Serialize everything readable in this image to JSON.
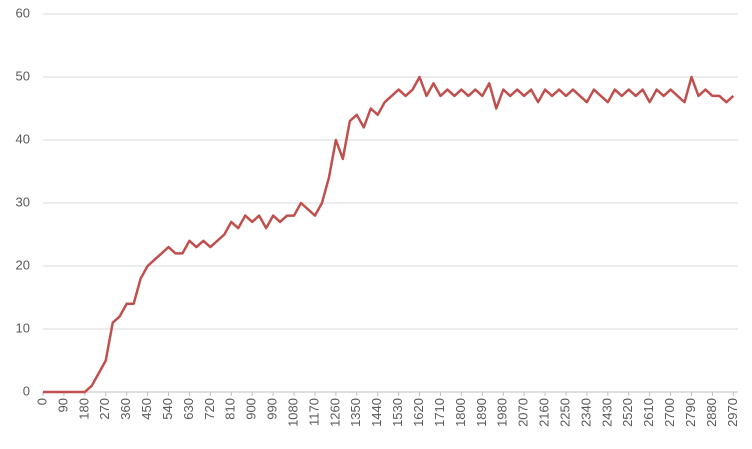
{
  "chart_data": {
    "type": "line",
    "x": [
      0,
      30,
      60,
      90,
      120,
      150,
      180,
      210,
      240,
      270,
      300,
      330,
      360,
      390,
      420,
      450,
      480,
      510,
      540,
      570,
      600,
      630,
      660,
      690,
      720,
      750,
      780,
      810,
      840,
      870,
      900,
      930,
      960,
      990,
      1020,
      1050,
      1080,
      1110,
      1140,
      1170,
      1200,
      1230,
      1260,
      1290,
      1320,
      1350,
      1380,
      1410,
      1440,
      1470,
      1500,
      1530,
      1560,
      1590,
      1620,
      1650,
      1680,
      1710,
      1740,
      1770,
      1800,
      1830,
      1860,
      1890,
      1920,
      1950,
      1980,
      2010,
      2040,
      2070,
      2100,
      2130,
      2160,
      2190,
      2220,
      2250,
      2280,
      2310,
      2340,
      2370,
      2400,
      2430,
      2460,
      2490,
      2520,
      2550,
      2580,
      2610,
      2640,
      2670,
      2700,
      2730,
      2760,
      2790,
      2820,
      2850,
      2880,
      2910,
      2940,
      2970
    ],
    "series": [
      {
        "color": "#c0504d",
        "values": [
          0,
          0,
          0,
          0,
          0,
          0,
          0,
          1,
          3,
          5,
          11,
          12,
          14,
          14,
          18,
          20,
          21,
          22,
          23,
          22,
          22,
          24,
          23,
          24,
          23,
          24,
          25,
          27,
          26,
          28,
          27,
          28,
          26,
          28,
          27,
          28,
          28,
          30,
          29,
          28,
          30,
          34,
          40,
          37,
          43,
          44,
          42,
          45,
          44,
          46,
          47,
          48,
          47,
          48,
          50,
          47,
          49,
          47,
          48,
          47,
          48,
          47,
          48,
          47,
          49,
          45,
          48,
          47,
          48,
          47,
          48,
          46,
          48,
          47,
          48,
          47,
          48,
          47,
          46,
          48,
          47,
          46,
          48,
          47,
          48,
          47,
          48,
          46,
          48,
          47,
          48,
          47,
          46,
          50,
          47,
          48,
          47,
          47,
          46,
          47
        ]
      }
    ],
    "xlim": [
      0,
      2990
    ],
    "xticks": [
      0,
      90,
      180,
      270,
      360,
      450,
      540,
      630,
      720,
      810,
      900,
      990,
      1080,
      1170,
      1260,
      1350,
      1440,
      1530,
      1620,
      1710,
      1800,
      1890,
      1980,
      2070,
      2160,
      2250,
      2340,
      2430,
      2520,
      2610,
      2700,
      2790,
      2880,
      2970
    ],
    "ylim": [
      0,
      60
    ],
    "yticks": [
      0,
      10,
      20,
      30,
      40,
      50,
      60
    ],
    "grid": true
  }
}
